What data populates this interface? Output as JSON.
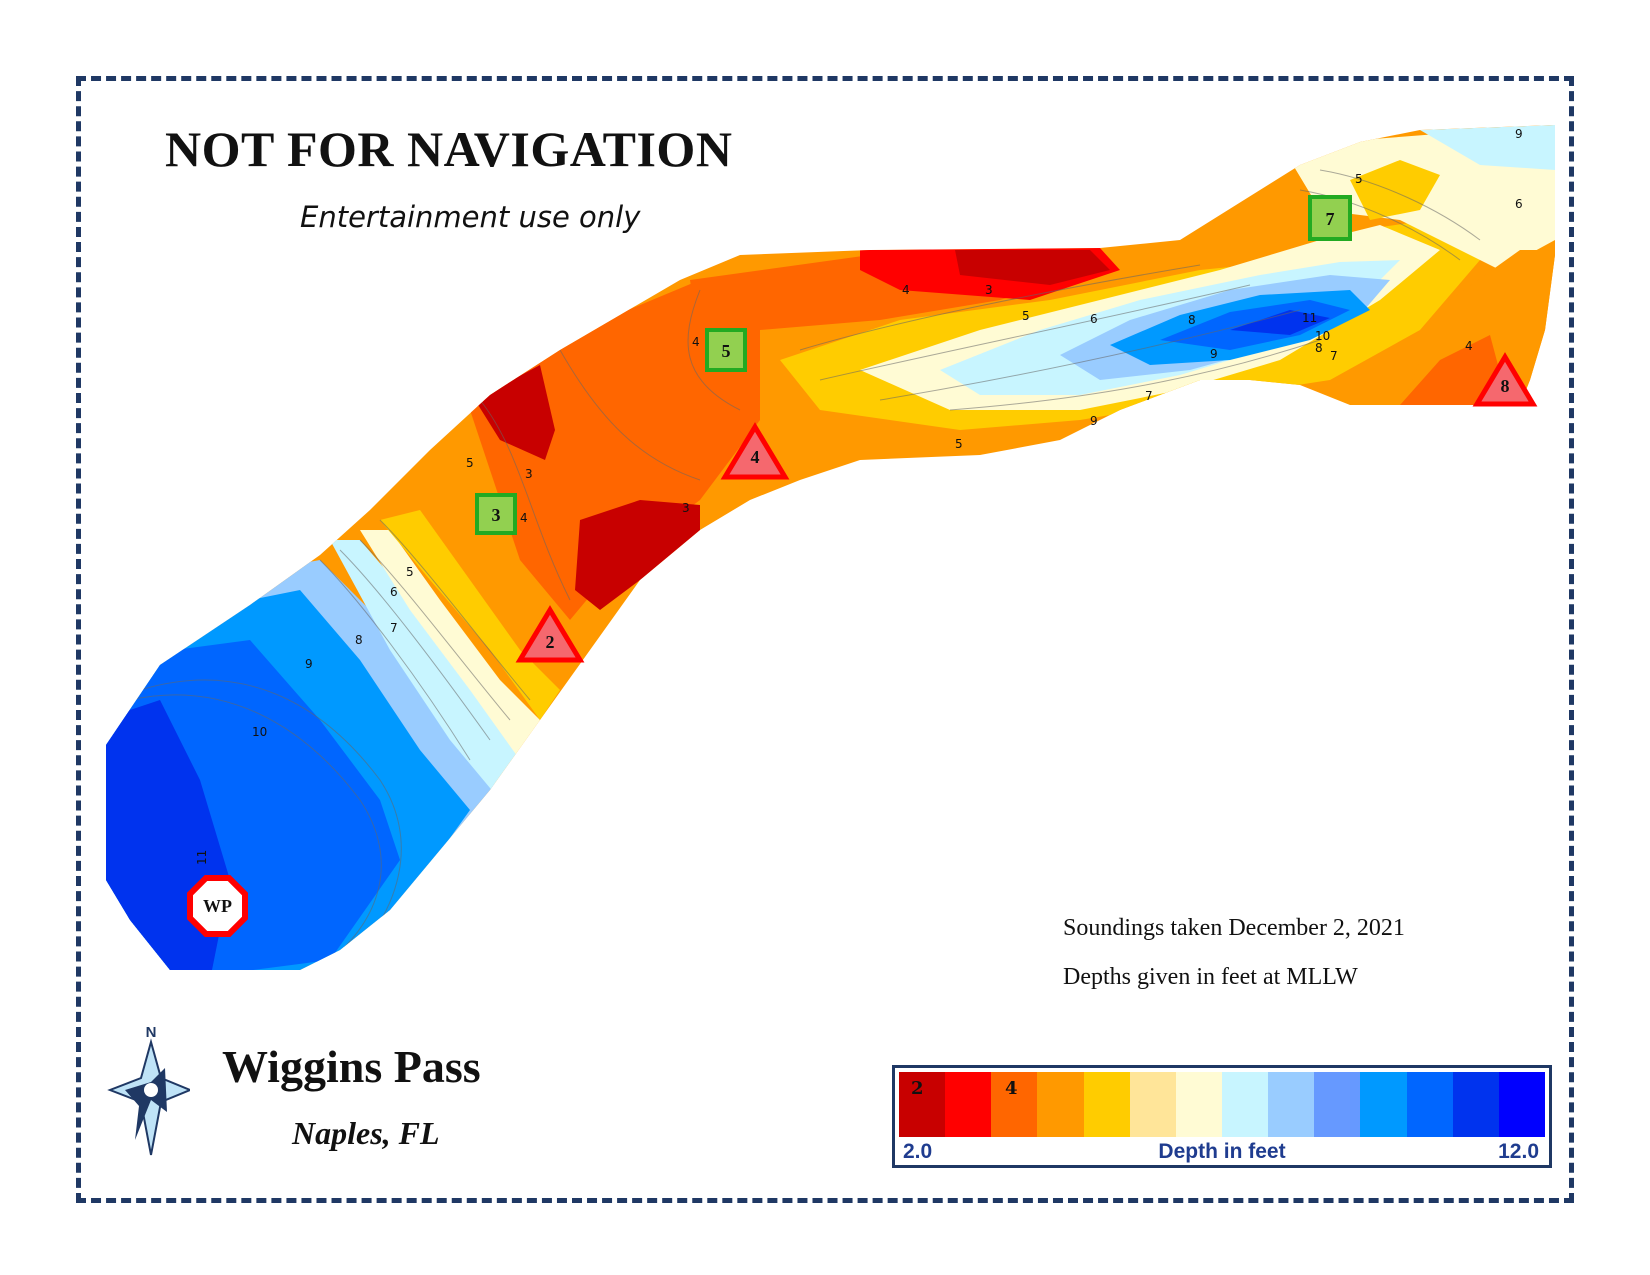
{
  "header": {
    "title": "NOT FOR NAVIGATION",
    "subtitle": "Entertainment use only"
  },
  "place": {
    "name": "Wiggins Pass",
    "location": "Naples, FL"
  },
  "notes": {
    "soundings": "Soundings taken December 2, 2021",
    "datum": "Depths given in feet at MLLW"
  },
  "compass": {
    "label": "N",
    "icon": "compass-rose-icon"
  },
  "legend": {
    "title": "Depth in feet",
    "min": "2.0",
    "max": "12.0",
    "swatch_labels": [
      "2",
      "4"
    ],
    "colors": [
      "#c80000",
      "#ff0000",
      "#ff6600",
      "#ff9900",
      "#ffcc00",
      "#ffe599",
      "#fffbd4",
      "#c8f5ff",
      "#99ccff",
      "#6699ff",
      "#0099ff",
      "#0066ff",
      "#0033ee",
      "#0000ff"
    ]
  },
  "markers": [
    {
      "label": "WP",
      "shape": "octagon",
      "color": "#ff0000"
    },
    {
      "label": "2",
      "shape": "triangle",
      "color": "#ff0000"
    },
    {
      "label": "3",
      "shape": "square",
      "color": "#22aa22"
    },
    {
      "label": "4",
      "shape": "triangle",
      "color": "#ff0000"
    },
    {
      "label": "5",
      "shape": "square",
      "color": "#22aa22"
    },
    {
      "label": "7",
      "shape": "square",
      "color": "#22aa22"
    },
    {
      "label": "8",
      "shape": "triangle",
      "color": "#ff0000"
    }
  ],
  "contour_labels": [
    "3",
    "3",
    "3",
    "4",
    "4",
    "4",
    "4",
    "5",
    "5",
    "5",
    "5",
    "5",
    "6",
    "6",
    "6",
    "7",
    "7",
    "7",
    "8",
    "8",
    "8",
    "9",
    "9",
    "9",
    "9",
    "10",
    "10",
    "11",
    "11"
  ]
}
